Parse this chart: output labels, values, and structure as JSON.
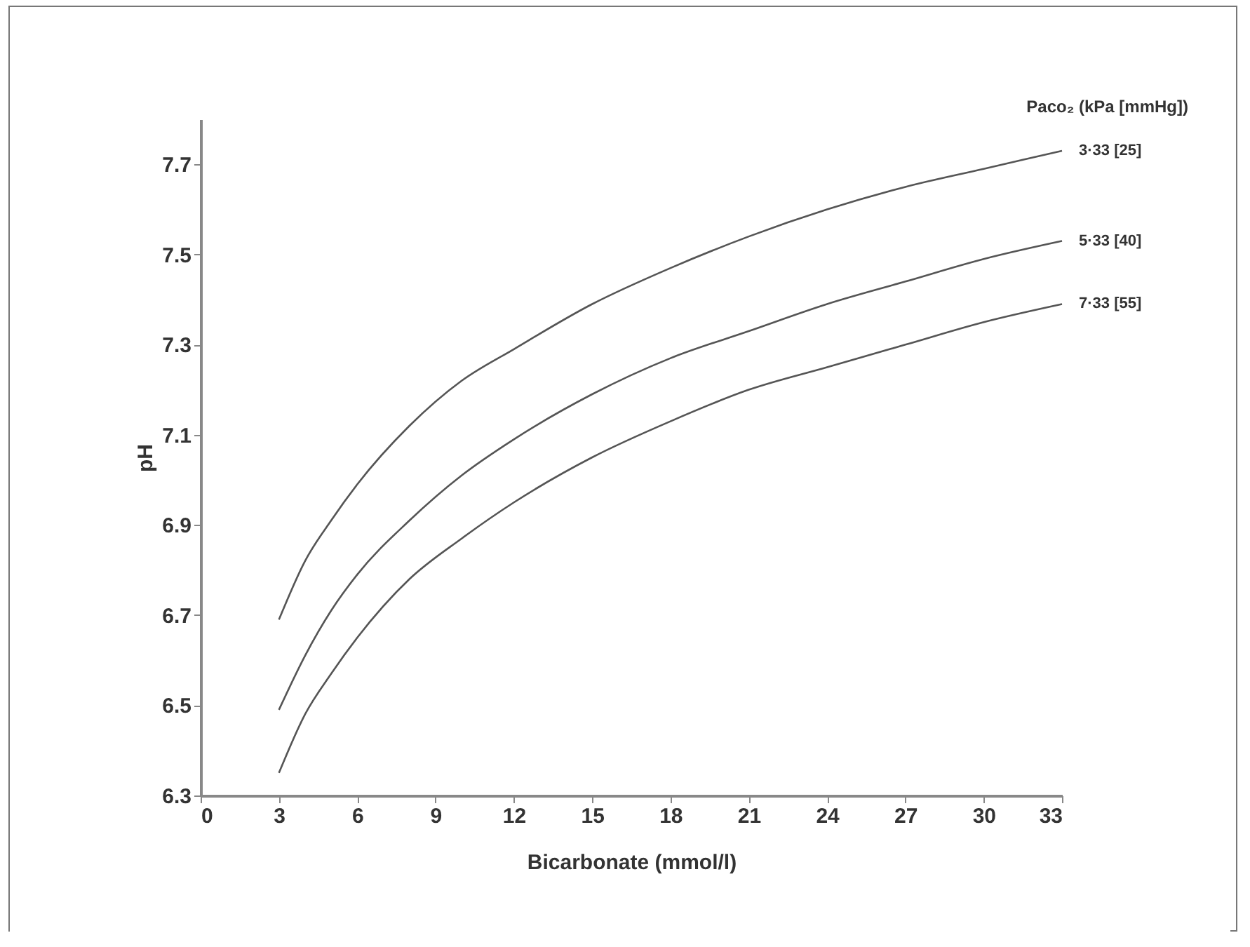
{
  "chart_data": {
    "type": "line",
    "xlabel": "Bicarbonate (mmol/l)",
    "ylabel": "pH",
    "legend_title": "Paco₂ (kPa [mmHg])",
    "x": [
      3,
      4,
      5,
      6,
      8,
      10,
      12,
      15,
      18,
      21,
      24,
      27,
      30,
      33
    ],
    "series": [
      {
        "name": "3·33 [25]",
        "color": "#555555",
        "values": [
          6.69,
          6.82,
          6.91,
          6.99,
          7.12,
          7.22,
          7.29,
          7.39,
          7.47,
          7.54,
          7.6,
          7.65,
          7.69,
          7.73
        ]
      },
      {
        "name": "5·33 [40]",
        "color": "#555555",
        "values": [
          6.49,
          6.61,
          6.71,
          6.79,
          6.91,
          7.01,
          7.09,
          7.19,
          7.27,
          7.33,
          7.39,
          7.44,
          7.49,
          7.53
        ]
      },
      {
        "name": "7·33 [55]",
        "color": "#555555",
        "values": [
          6.35,
          6.48,
          6.57,
          6.65,
          6.78,
          6.87,
          6.95,
          7.05,
          7.13,
          7.2,
          7.25,
          7.3,
          7.35,
          7.39
        ]
      }
    ],
    "xlim": [
      0,
      33
    ],
    "xticks": [
      0,
      3,
      6,
      9,
      12,
      15,
      18,
      21,
      24,
      27,
      30,
      33
    ],
    "ylim": [
      6.3,
      7.8
    ],
    "yticks": [
      6.3,
      6.5,
      6.7,
      6.9,
      7.1,
      7.3,
      7.5,
      7.7
    ],
    "grid": false,
    "marker": "none",
    "line_style": "solid"
  }
}
